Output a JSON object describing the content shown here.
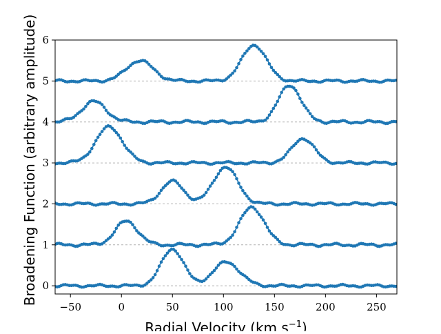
{
  "chart_data": {
    "type": "scatter",
    "title": "",
    "xlabel": "Radial Velocity (km s",
    "xlabel_superscript": "−1",
    "xlabel_close": ")",
    "ylabel": "Broadening Function (arbitrary amplitude)",
    "xlim": [
      -65,
      270
    ],
    "ylim": [
      -0.2,
      6.0
    ],
    "xticks": [
      -50,
      0,
      50,
      100,
      150,
      200,
      250
    ],
    "xtick_labels": [
      "−50",
      "0",
      "50",
      "100",
      "150",
      "200",
      "250"
    ],
    "yticks": [
      0,
      1,
      2,
      3,
      4,
      5,
      6
    ],
    "ytick_labels": [
      "0",
      "1",
      "2",
      "3",
      "4",
      "5",
      "6"
    ],
    "baselines": [
      0,
      1,
      2,
      3,
      4,
      5
    ],
    "grid": false,
    "legend": "none",
    "colors": {
      "series": "#1f77b4",
      "baseline": "#b0b0b0",
      "axes": "#000000"
    },
    "x_step": 2,
    "series": [
      {
        "offset": 0,
        "noise": 0.035,
        "peaks": [
          {
            "center": 50,
            "height": 0.9,
            "width": 11
          },
          {
            "center": 103,
            "height": 0.58,
            "width": 13
          }
        ]
      },
      {
        "offset": 1,
        "noise": 0.04,
        "peaks": [
          {
            "center": 5,
            "height": 0.58,
            "width": 11
          },
          {
            "center": 128,
            "height": 0.92,
            "width": 12
          }
        ]
      },
      {
        "offset": 2,
        "noise": 0.035,
        "peaks": [
          {
            "center": 50,
            "height": 0.55,
            "width": 11
          },
          {
            "center": 102,
            "height": 0.9,
            "width": 12
          }
        ]
      },
      {
        "offset": 3,
        "noise": 0.035,
        "peaks": [
          {
            "center": -12,
            "height": 0.88,
            "width": 13
          },
          {
            "center": 178,
            "height": 0.6,
            "width": 11
          }
        ]
      },
      {
        "offset": 4,
        "noise": 0.04,
        "peaks": [
          {
            "center": -27,
            "height": 0.5,
            "width": 12
          },
          {
            "center": 165,
            "height": 0.9,
            "width": 11
          }
        ]
      },
      {
        "offset": 5,
        "noise": 0.035,
        "peaks": [
          {
            "center": 18,
            "height": 0.5,
            "width": 13
          },
          {
            "center": 130,
            "height": 0.88,
            "width": 12
          }
        ]
      }
    ]
  }
}
